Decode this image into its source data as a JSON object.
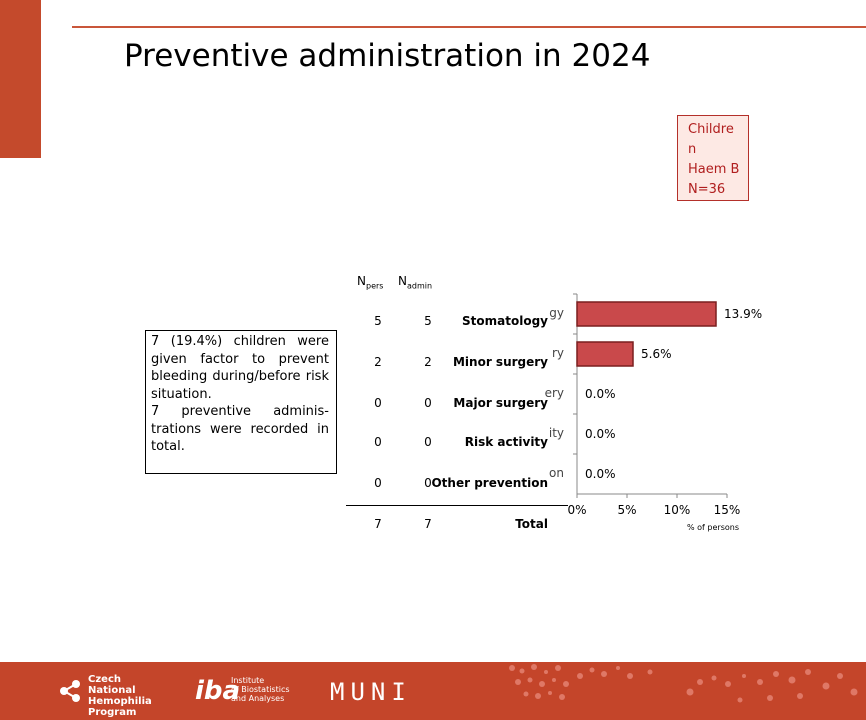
{
  "slide": {
    "title": "Preventive administration in 2024",
    "group_box": {
      "line1": "Childre",
      "line2": "n",
      "line3": "Haem B",
      "line4": "N=36"
    },
    "note": {
      "paragraph1": "7 (19.4%) children were given factor to prevent bleeding during/before risk situation.",
      "paragraph2": "7 preventive adminis-trations were recorded in total."
    }
  },
  "table": {
    "header_pers": {
      "main": "N",
      "sub": "pers"
    },
    "header_admin": {
      "main": "N",
      "sub": "admin"
    },
    "rows": [
      {
        "n_pers": "5",
        "n_admin": "5",
        "label": "Stomatology"
      },
      {
        "n_pers": "2",
        "n_admin": "2",
        "label": "Minor surgery"
      },
      {
        "n_pers": "0",
        "n_admin": "0",
        "label": "Major surgery"
      },
      {
        "n_pers": "0",
        "n_admin": "0",
        "label": "Risk activity"
      },
      {
        "n_pers": "0",
        "n_admin": "0",
        "label": "Other prevention"
      }
    ],
    "total": {
      "n_pers": "7",
      "n_admin": "7",
      "label": "Total"
    }
  },
  "chart_data": {
    "type": "bar",
    "orientation": "horizontal",
    "categories": [
      "Stomatology",
      "Minor surgery",
      "Major surgery",
      "Risk activity",
      "Other prevention"
    ],
    "axis_cut_labels": [
      "gy",
      "ry",
      "ery",
      "ity",
      "on"
    ],
    "values": [
      13.9,
      5.6,
      0.0,
      0.0,
      0.0
    ],
    "data_labels": [
      "13.9%",
      "5.6%",
      "0.0%",
      "0.0%",
      "0.0%"
    ],
    "xlabel": "% of persons",
    "xlim": [
      0,
      15
    ],
    "xticks": [
      "0%",
      "5%",
      "10%",
      "15%"
    ],
    "xtick_values": [
      0,
      5,
      10,
      15
    ],
    "bar_color": "#c9494b",
    "bar_border": "#7a1f1f",
    "grid": false
  },
  "footer": {
    "logo1": [
      "Czech National",
      "Hemophilia",
      "Program"
    ],
    "logo2_mark": "iba",
    "logo2_text": [
      "Institute",
      "of Biostatistics",
      "and Analyses"
    ],
    "logo3": "MUNI",
    "color": "#c4452a"
  }
}
